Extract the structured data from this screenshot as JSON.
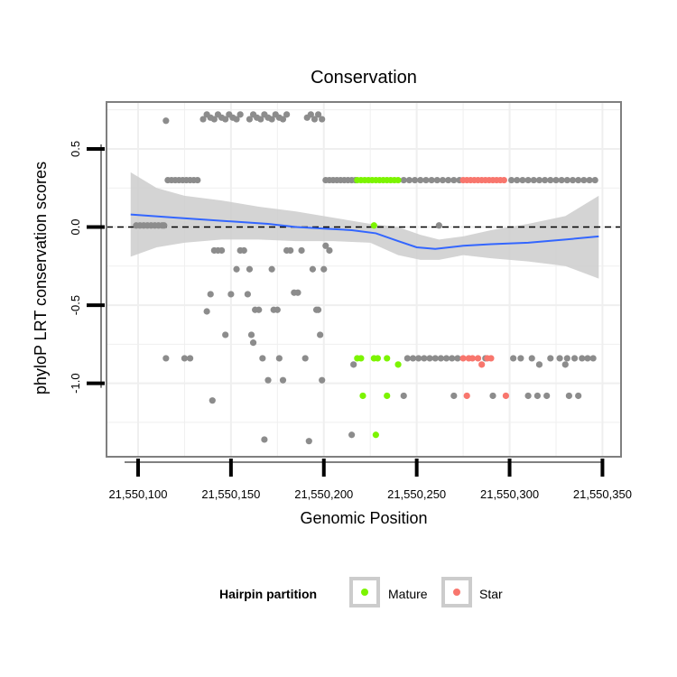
{
  "chart_data": {
    "type": "scatter",
    "title": "Conservation",
    "xlabel": "Genomic Position",
    "ylabel": "phyloP LRT conservation scores",
    "xlim": [
      21550083,
      21550360
    ],
    "ylim": [
      -1.47,
      0.8
    ],
    "x_ticks": [
      21550100,
      21550150,
      21550200,
      21550250,
      21550300,
      21550350
    ],
    "x_tick_labels": [
      "21,550,100",
      "21,550,150",
      "21,550,200",
      "21,550,250",
      "21,550,300",
      "21,550,350"
    ],
    "y_ticks": [
      0.5,
      0.0,
      -0.5,
      -1.0
    ],
    "y_tick_labels": [
      "0.5",
      "0.0",
      "-0.5",
      "-1.0"
    ],
    "reference_line": {
      "y": 0.0,
      "style": "dashed"
    },
    "legend": {
      "title": "Hairpin partition",
      "position": "bottom",
      "entries": [
        {
          "label": "Mature",
          "color": "#7cf400"
        },
        {
          "label": "Star",
          "color": "#f8766d"
        }
      ]
    },
    "colors": {
      "background": "#ffffff",
      "grid": "#efefef",
      "point_default": "#8c8c8c",
      "mature": "#7cf400",
      "star": "#f8766d",
      "smooth_line": "#3366ff",
      "ribbon": "#cccccc"
    },
    "series": [
      {
        "name": "Other",
        "color": "#8c8c8c",
        "points": [
          [
            21550099,
            0.01
          ],
          [
            21550101,
            0.01
          ],
          [
            21550103,
            0.01
          ],
          [
            21550105,
            0.01
          ],
          [
            21550107,
            0.01
          ],
          [
            21550109,
            0.01
          ],
          [
            21550111,
            0.01
          ],
          [
            21550113,
            0.01
          ],
          [
            21550114,
            0.01
          ],
          [
            21550115,
            0.68
          ],
          [
            21550115,
            -0.84
          ],
          [
            21550116,
            0.3
          ],
          [
            21550118,
            0.3
          ],
          [
            21550120,
            0.3
          ],
          [
            21550122,
            0.3
          ],
          [
            21550124,
            0.3
          ],
          [
            21550126,
            0.3
          ],
          [
            21550128,
            0.3
          ],
          [
            21550130,
            0.3
          ],
          [
            21550132,
            0.3
          ],
          [
            21550125,
            -0.84
          ],
          [
            21550128,
            -0.84
          ],
          [
            21550135,
            0.69
          ],
          [
            21550137,
            0.72
          ],
          [
            21550139,
            0.7
          ],
          [
            21550141,
            0.69
          ],
          [
            21550143,
            0.72
          ],
          [
            21550145,
            0.7
          ],
          [
            21550147,
            0.69
          ],
          [
            21550149,
            0.72
          ],
          [
            21550151,
            0.7
          ],
          [
            21550153,
            0.69
          ],
          [
            21550155,
            0.72
          ],
          [
            21550160,
            0.69
          ],
          [
            21550162,
            0.72
          ],
          [
            21550164,
            0.7
          ],
          [
            21550166,
            0.69
          ],
          [
            21550168,
            0.72
          ],
          [
            21550170,
            0.7
          ],
          [
            21550172,
            0.69
          ],
          [
            21550174,
            0.72
          ],
          [
            21550176,
            0.7
          ],
          [
            21550178,
            0.69
          ],
          [
            21550180,
            0.72
          ],
          [
            21550191,
            0.7
          ],
          [
            21550193,
            0.72
          ],
          [
            21550195,
            0.69
          ],
          [
            21550197,
            0.72
          ],
          [
            21550199,
            0.69
          ],
          [
            21550137,
            -0.54
          ],
          [
            21550139,
            -0.43
          ],
          [
            21550140,
            -1.11
          ],
          [
            21550141,
            -0.15
          ],
          [
            21550143,
            -0.15
          ],
          [
            21550145,
            -0.15
          ],
          [
            21550147,
            -0.69
          ],
          [
            21550150,
            -0.43
          ],
          [
            21550153,
            -0.27
          ],
          [
            21550155,
            -0.15
          ],
          [
            21550157,
            -0.15
          ],
          [
            21550159,
            -0.43
          ],
          [
            21550160,
            -0.27
          ],
          [
            21550161,
            -0.69
          ],
          [
            21550162,
            -0.74
          ],
          [
            21550163,
            -0.53
          ],
          [
            21550165,
            -0.53
          ],
          [
            21550167,
            -0.84
          ],
          [
            21550168,
            -1.36
          ],
          [
            21550170,
            -0.98
          ],
          [
            21550172,
            -0.27
          ],
          [
            21550173,
            -0.53
          ],
          [
            21550175,
            -0.53
          ],
          [
            21550176,
            -0.84
          ],
          [
            21550178,
            -0.98
          ],
          [
            21550180,
            -0.15
          ],
          [
            21550182,
            -0.15
          ],
          [
            21550184,
            -0.42
          ],
          [
            21550186,
            -0.42
          ],
          [
            21550188,
            -0.15
          ],
          [
            21550190,
            -0.84
          ],
          [
            21550192,
            -1.37
          ],
          [
            21550194,
            -0.27
          ],
          [
            21550196,
            -0.53
          ],
          [
            21550197,
            -0.53
          ],
          [
            21550198,
            -0.69
          ],
          [
            21550199,
            -0.98
          ],
          [
            21550200,
            -0.27
          ],
          [
            21550201,
            -0.12
          ],
          [
            21550203,
            -0.15
          ],
          [
            21550201,
            0.3
          ],
          [
            21550203,
            0.3
          ],
          [
            21550205,
            0.3
          ],
          [
            21550207,
            0.3
          ],
          [
            21550209,
            0.3
          ],
          [
            21550211,
            0.3
          ],
          [
            21550213,
            0.3
          ],
          [
            21550215,
            0.3
          ],
          [
            21550217,
            0.3
          ],
          [
            21550243,
            0.3
          ],
          [
            21550246,
            0.3
          ],
          [
            21550249,
            0.3
          ],
          [
            21550252,
            0.3
          ],
          [
            21550255,
            0.3
          ],
          [
            21550258,
            0.3
          ],
          [
            21550261,
            0.3
          ],
          [
            21550264,
            0.3
          ],
          [
            21550267,
            0.3
          ],
          [
            21550270,
            0.3
          ],
          [
            21550273,
            0.3
          ],
          [
            21550301,
            0.3
          ],
          [
            21550304,
            0.3
          ],
          [
            21550307,
            0.3
          ],
          [
            21550310,
            0.3
          ],
          [
            21550313,
            0.3
          ],
          [
            21550316,
            0.3
          ],
          [
            21550319,
            0.3
          ],
          [
            21550322,
            0.3
          ],
          [
            21550325,
            0.3
          ],
          [
            21550328,
            0.3
          ],
          [
            21550331,
            0.3
          ],
          [
            21550334,
            0.3
          ],
          [
            21550337,
            0.3
          ],
          [
            21550340,
            0.3
          ],
          [
            21550343,
            0.3
          ],
          [
            21550346,
            0.3
          ],
          [
            21550216,
            -0.88
          ],
          [
            21550215,
            -1.33
          ],
          [
            21550243,
            -1.08
          ],
          [
            21550245,
            -0.84
          ],
          [
            21550248,
            -0.84
          ],
          [
            21550251,
            -0.84
          ],
          [
            21550254,
            -0.84
          ],
          [
            21550257,
            -0.84
          ],
          [
            21550260,
            -0.84
          ],
          [
            21550263,
            -0.84
          ],
          [
            21550266,
            -0.84
          ],
          [
            21550269,
            -0.84
          ],
          [
            21550272,
            -0.84
          ],
          [
            21550270,
            -1.08
          ],
          [
            21550262,
            0.01
          ],
          [
            21550287,
            -0.84
          ],
          [
            21550291,
            -1.08
          ],
          [
            21550302,
            -0.84
          ],
          [
            21550306,
            -0.84
          ],
          [
            21550312,
            -0.84
          ],
          [
            21550310,
            -1.08
          ],
          [
            21550315,
            -1.08
          ],
          [
            21550316,
            -0.88
          ],
          [
            21550320,
            -1.08
          ],
          [
            21550322,
            -0.84
          ],
          [
            21550327,
            -0.84
          ],
          [
            21550330,
            -0.88
          ],
          [
            21550331,
            -0.84
          ],
          [
            21550332,
            -1.08
          ],
          [
            21550335,
            -0.84
          ],
          [
            21550337,
            -1.08
          ],
          [
            21550339,
            -0.84
          ],
          [
            21550342,
            -0.84
          ],
          [
            21550345,
            -0.84
          ]
        ]
      },
      {
        "name": "Mature",
        "color": "#7cf400",
        "points": [
          [
            21550218,
            0.3
          ],
          [
            21550220,
            0.3
          ],
          [
            21550222,
            0.3
          ],
          [
            21550224,
            0.3
          ],
          [
            21550226,
            0.3
          ],
          [
            21550228,
            0.3
          ],
          [
            21550230,
            0.3
          ],
          [
            21550232,
            0.3
          ],
          [
            21550234,
            0.3
          ],
          [
            21550236,
            0.3
          ],
          [
            21550238,
            0.3
          ],
          [
            21550240,
            0.3
          ],
          [
            21550227,
            0.01
          ],
          [
            21550218,
            -0.84
          ],
          [
            21550220,
            -0.84
          ],
          [
            21550227,
            -0.84
          ],
          [
            21550229,
            -0.84
          ],
          [
            21550234,
            -0.84
          ],
          [
            21550240,
            -0.88
          ],
          [
            21550221,
            -1.08
          ],
          [
            21550234,
            -1.08
          ],
          [
            21550228,
            -1.33
          ]
        ]
      },
      {
        "name": "Star",
        "color": "#f8766d",
        "points": [
          [
            21550275,
            0.3
          ],
          [
            21550277,
            0.3
          ],
          [
            21550279,
            0.3
          ],
          [
            21550281,
            0.3
          ],
          [
            21550283,
            0.3
          ],
          [
            21550285,
            0.3
          ],
          [
            21550287,
            0.3
          ],
          [
            21550289,
            0.3
          ],
          [
            21550291,
            0.3
          ],
          [
            21550293,
            0.3
          ],
          [
            21550295,
            0.3
          ],
          [
            21550297,
            0.3
          ],
          [
            21550275,
            -0.84
          ],
          [
            21550278,
            -0.84
          ],
          [
            21550280,
            -0.84
          ],
          [
            21550283,
            -0.84
          ],
          [
            21550285,
            -0.88
          ],
          [
            21550288,
            -0.84
          ],
          [
            21550290,
            -0.84
          ],
          [
            21550277,
            -1.08
          ],
          [
            21550298,
            -1.08
          ]
        ]
      }
    ],
    "smooth": {
      "method": "loess",
      "line": [
        [
          21550096,
          0.08
        ],
        [
          21550120,
          0.06
        ],
        [
          21550145,
          0.04
        ],
        [
          21550170,
          0.02
        ],
        [
          21550185,
          0.0
        ],
        [
          21550200,
          -0.01
        ],
        [
          21550215,
          -0.02
        ],
        [
          21550228,
          -0.04
        ],
        [
          21550240,
          -0.09
        ],
        [
          21550250,
          -0.13
        ],
        [
          21550260,
          -0.14
        ],
        [
          21550275,
          -0.12
        ],
        [
          21550290,
          -0.11
        ],
        [
          21550310,
          -0.1
        ],
        [
          21550330,
          -0.08
        ],
        [
          21550348,
          -0.06
        ]
      ],
      "upper": [
        [
          21550096,
          0.35
        ],
        [
          21550110,
          0.25
        ],
        [
          21550125,
          0.2
        ],
        [
          21550145,
          0.17
        ],
        [
          21550165,
          0.13
        ],
        [
          21550185,
          0.1
        ],
        [
          21550205,
          0.06
        ],
        [
          21550225,
          0.02
        ],
        [
          21550240,
          0.0
        ],
        [
          21550252,
          -0.05
        ],
        [
          21550262,
          -0.08
        ],
        [
          21550275,
          -0.06
        ],
        [
          21550290,
          -0.02
        ],
        [
          21550310,
          0.02
        ],
        [
          21550330,
          0.07
        ],
        [
          21550348,
          0.2
        ]
      ],
      "lower": [
        [
          21550096,
          -0.19
        ],
        [
          21550110,
          -0.13
        ],
        [
          21550125,
          -0.1
        ],
        [
          21550145,
          -0.08
        ],
        [
          21550165,
          -0.08
        ],
        [
          21550185,
          -0.09
        ],
        [
          21550205,
          -0.09
        ],
        [
          21550225,
          -0.1
        ],
        [
          21550240,
          -0.18
        ],
        [
          21550252,
          -0.21
        ],
        [
          21550262,
          -0.21
        ],
        [
          21550275,
          -0.18
        ],
        [
          21550290,
          -0.2
        ],
        [
          21550310,
          -0.22
        ],
        [
          21550330,
          -0.25
        ],
        [
          21550348,
          -0.33
        ]
      ]
    }
  }
}
